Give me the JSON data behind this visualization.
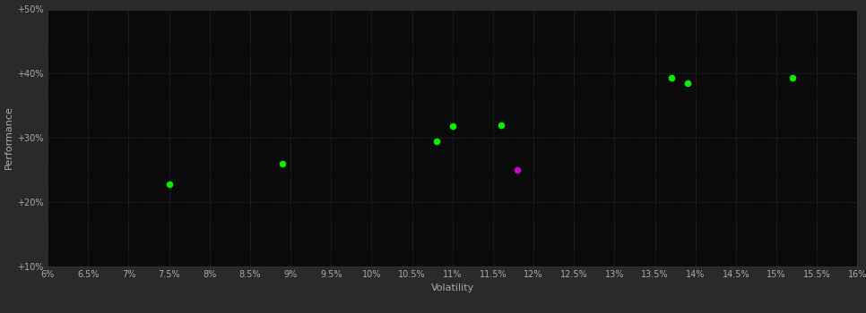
{
  "background_color": "#2a2a2a",
  "plot_bg_color": "#0a0a0a",
  "grid_color": "#333333",
  "xlabel": "Volatility",
  "ylabel": "Performance",
  "xlim": [
    0.06,
    0.16
  ],
  "ylim": [
    0.1,
    0.5
  ],
  "xticks": [
    0.06,
    0.065,
    0.07,
    0.075,
    0.08,
    0.085,
    0.09,
    0.095,
    0.1,
    0.105,
    0.11,
    0.115,
    0.12,
    0.125,
    0.13,
    0.135,
    0.14,
    0.145,
    0.15,
    0.155,
    0.16
  ],
  "yticks": [
    0.1,
    0.2,
    0.3,
    0.4,
    0.5
  ],
  "xtick_labels": [
    "6%",
    "6.5%",
    "7%",
    "7.5%",
    "8%",
    "8.5%",
    "9%",
    "9.5%",
    "10%",
    "10.5%",
    "11%",
    "11.5%",
    "12%",
    "12.5%",
    "13%",
    "13.5%",
    "14%",
    "14.5%",
    "15%",
    "15.5%",
    "16%"
  ],
  "ytick_labels": [
    "+10%",
    "+20%",
    "+30%",
    "+40%",
    "+50%"
  ],
  "green_points": [
    [
      0.075,
      0.228
    ],
    [
      0.089,
      0.26
    ],
    [
      0.108,
      0.295
    ],
    [
      0.11,
      0.318
    ],
    [
      0.116,
      0.32
    ],
    [
      0.137,
      0.393
    ],
    [
      0.139,
      0.385
    ],
    [
      0.152,
      0.393
    ]
  ],
  "magenta_points": [
    [
      0.118,
      0.25
    ]
  ],
  "green_color": "#00ee00",
  "magenta_color": "#cc00cc",
  "marker_size": 30,
  "tick_color": "#aaaaaa",
  "label_color": "#aaaaaa",
  "tick_fontsize": 7,
  "label_fontsize": 8
}
